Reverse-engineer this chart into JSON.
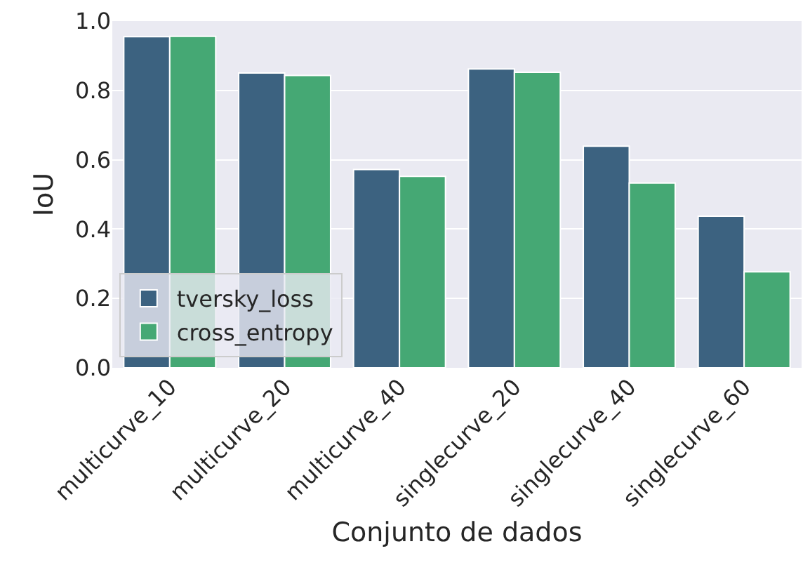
{
  "chart_data": {
    "type": "bar",
    "xlabel": "Conjunto de dados",
    "ylabel": "IoU",
    "categories": [
      "multicurve_10",
      "multicurve_20",
      "multicurve_40",
      "singlecurve_20",
      "singlecurve_40",
      "singlecurve_60"
    ],
    "series": [
      {
        "name": "tversky_loss",
        "color": "#3c6280",
        "values": [
          0.955,
          0.85,
          0.572,
          0.862,
          0.639,
          0.437
        ]
      },
      {
        "name": "cross_entropy",
        "color": "#45a874",
        "values": [
          0.956,
          0.843,
          0.552,
          0.852,
          0.533,
          0.277
        ]
      }
    ],
    "ylim": [
      0,
      1.0
    ],
    "yticks": [
      {
        "value": 0,
        "label": "0.0"
      },
      {
        "value": 0.2,
        "label": "0.2"
      },
      {
        "value": 0.4,
        "label": "0.4"
      },
      {
        "value": 0.6,
        "label": "0.6"
      },
      {
        "value": 0.8,
        "label": "0.8"
      },
      {
        "value": 1.0,
        "label": "1.0"
      }
    ],
    "grid": "y",
    "legend": "bottom left"
  }
}
